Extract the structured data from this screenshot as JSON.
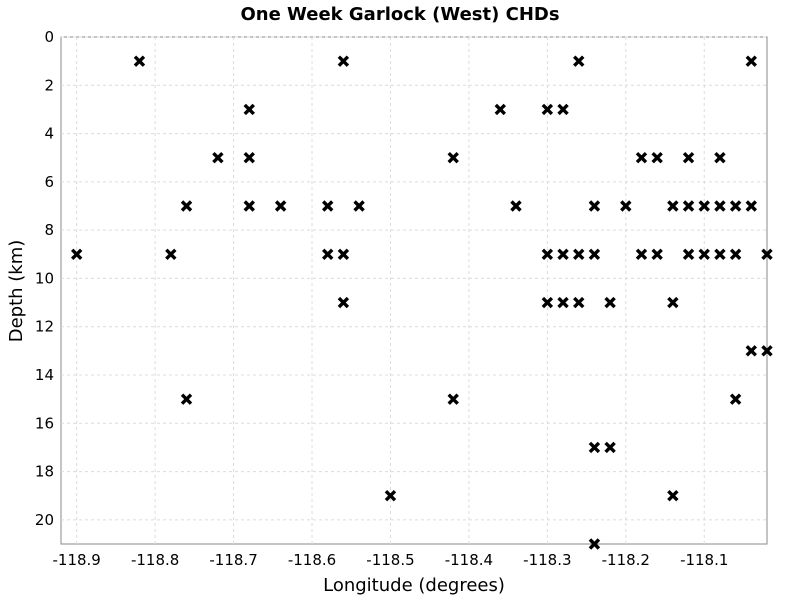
{
  "chart_data": {
    "type": "scatter",
    "title": "One Week Garlock (West) CHDs",
    "xlabel": "Longitude (degrees)",
    "ylabel": "Depth (km)",
    "xlim": [
      -118.92,
      -118.02
    ],
    "ylim": [
      0,
      21
    ],
    "y_inverted": true,
    "grid": true,
    "marker": "x",
    "marker_color": "#000000",
    "x_ticks": [
      -118.9,
      -118.8,
      -118.7,
      -118.6,
      -118.5,
      -118.4,
      -118.3,
      -118.2,
      -118.1
    ],
    "x_tick_labels": [
      "-118.9",
      "-118.8",
      "-118.7",
      "-118.6",
      "-118.5",
      "-118.4",
      "-118.3",
      "-118.2",
      "-118.1"
    ],
    "y_ticks": [
      0,
      2,
      4,
      6,
      8,
      10,
      12,
      14,
      16,
      18,
      20
    ],
    "y_tick_labels": [
      "0",
      "2",
      "4",
      "6",
      "8",
      "10",
      "12",
      "14",
      "16",
      "18",
      "20"
    ],
    "points": [
      [
        -118.9,
        9
      ],
      [
        -118.82,
        1
      ],
      [
        -118.78,
        9
      ],
      [
        -118.76,
        7
      ],
      [
        -118.76,
        15
      ],
      [
        -118.72,
        5
      ],
      [
        -118.68,
        3
      ],
      [
        -118.68,
        5
      ],
      [
        -118.68,
        7
      ],
      [
        -118.64,
        7
      ],
      [
        -118.58,
        7
      ],
      [
        -118.58,
        9
      ],
      [
        -118.56,
        1
      ],
      [
        -118.56,
        9
      ],
      [
        -118.56,
        11
      ],
      [
        -118.54,
        7
      ],
      [
        -118.5,
        19
      ],
      [
        -118.42,
        5
      ],
      [
        -118.42,
        15
      ],
      [
        -118.36,
        3
      ],
      [
        -118.34,
        7
      ],
      [
        -118.3,
        3
      ],
      [
        -118.3,
        9
      ],
      [
        -118.3,
        11
      ],
      [
        -118.28,
        3
      ],
      [
        -118.28,
        9
      ],
      [
        -118.28,
        11
      ],
      [
        -118.26,
        1
      ],
      [
        -118.26,
        9
      ],
      [
        -118.26,
        11
      ],
      [
        -118.24,
        7
      ],
      [
        -118.24,
        9
      ],
      [
        -118.24,
        17
      ],
      [
        -118.24,
        21
      ],
      [
        -118.22,
        11
      ],
      [
        -118.22,
        17
      ],
      [
        -118.2,
        7
      ],
      [
        -118.18,
        5
      ],
      [
        -118.18,
        9
      ],
      [
        -118.16,
        5
      ],
      [
        -118.16,
        9
      ],
      [
        -118.14,
        7
      ],
      [
        -118.14,
        11
      ],
      [
        -118.14,
        19
      ],
      [
        -118.12,
        5
      ],
      [
        -118.12,
        7
      ],
      [
        -118.12,
        9
      ],
      [
        -118.1,
        7
      ],
      [
        -118.1,
        9
      ],
      [
        -118.08,
        5
      ],
      [
        -118.08,
        7
      ],
      [
        -118.08,
        9
      ],
      [
        -118.06,
        7
      ],
      [
        -118.06,
        9
      ],
      [
        -118.06,
        15
      ],
      [
        -118.04,
        1
      ],
      [
        -118.04,
        7
      ],
      [
        -118.04,
        13
      ],
      [
        -118.02,
        9
      ],
      [
        -118.02,
        13
      ]
    ]
  }
}
